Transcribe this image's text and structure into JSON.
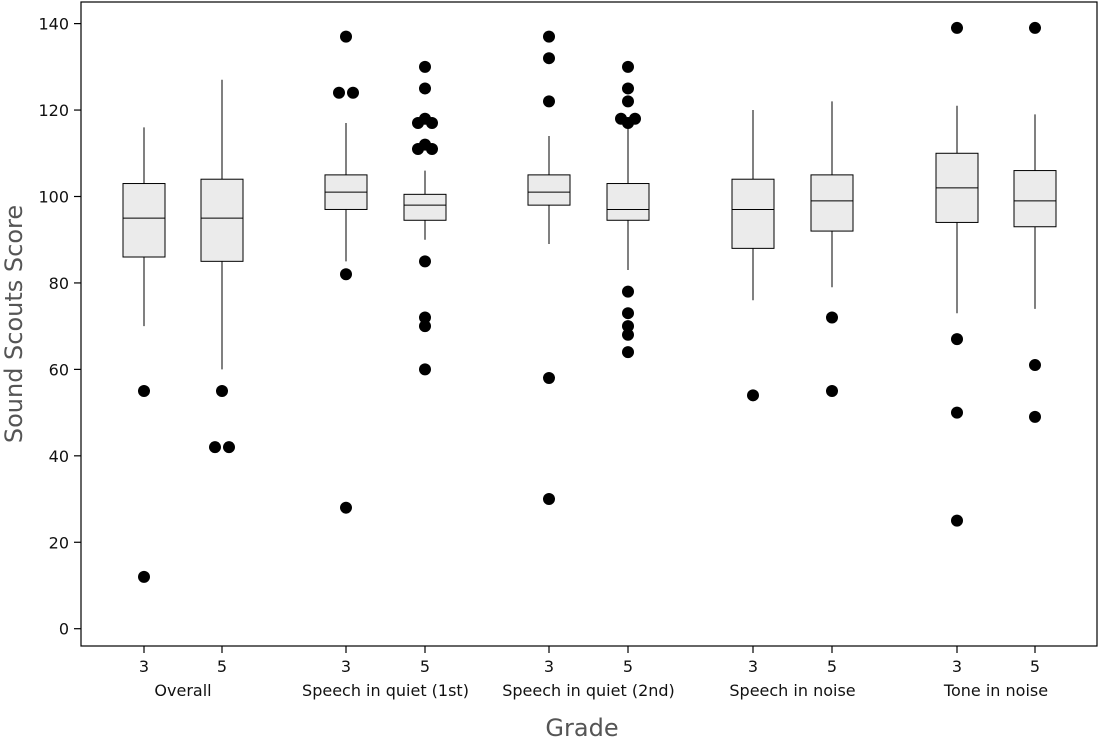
{
  "chart_data": {
    "type": "box",
    "xlabel": "Grade",
    "ylabel": "Sound Scouts Score",
    "ylim": [
      -4,
      145
    ],
    "yticks": [
      0,
      20,
      40,
      60,
      80,
      100,
      120,
      140
    ],
    "grid": false,
    "colors": {
      "box_fill": "#ebebeb",
      "stroke": "#000000",
      "outlier": "#000000",
      "axis_title": "#555555"
    },
    "groups": [
      {
        "label": "Overall",
        "boxes": [
          {
            "grade": "3",
            "whisker_low": 70,
            "q1": 86,
            "median": 95,
            "q3": 103,
            "whisker_high": 116,
            "outliers": [
              55,
              12
            ]
          },
          {
            "grade": "5",
            "whisker_low": 60,
            "q1": 85,
            "median": 95,
            "q3": 104,
            "whisker_high": 127,
            "outliers": [
              55,
              42,
              42
            ]
          }
        ]
      },
      {
        "label": "Speech in quiet (1st)",
        "boxes": [
          {
            "grade": "3",
            "whisker_low": 85,
            "q1": 97,
            "median": 101,
            "q3": 105,
            "whisker_high": 117,
            "outliers": [
              137,
              124,
              124,
              82,
              28
            ]
          },
          {
            "grade": "5",
            "whisker_low": 90,
            "q1": 94.5,
            "median": 98,
            "q3": 100.5,
            "whisker_high": 106,
            "outliers": [
              130,
              125,
              118,
              117,
              117,
              112,
              111,
              111,
              85,
              72,
              70,
              60
            ]
          }
        ]
      },
      {
        "label": "Speech in quiet (2nd)",
        "boxes": [
          {
            "grade": "3",
            "whisker_low": 89,
            "q1": 98,
            "median": 101,
            "q3": 105,
            "whisker_high": 114,
            "outliers": [
              137,
              132,
              122,
              58,
              30
            ]
          },
          {
            "grade": "5",
            "whisker_low": 83,
            "q1": 94.5,
            "median": 97,
            "q3": 103,
            "whisker_high": 116,
            "outliers": [
              130,
              125,
              122,
              118,
              118,
              117,
              78,
              73,
              70,
              68,
              64
            ]
          }
        ]
      },
      {
        "label": "Speech in noise",
        "boxes": [
          {
            "grade": "3",
            "whisker_low": 76,
            "q1": 88,
            "median": 97,
            "q3": 104,
            "whisker_high": 120,
            "outliers": [
              54
            ]
          },
          {
            "grade": "5",
            "whisker_low": 79,
            "q1": 92,
            "median": 99,
            "q3": 105,
            "whisker_high": 122,
            "outliers": [
              72,
              55
            ]
          }
        ]
      },
      {
        "label": "Tone in noise",
        "boxes": [
          {
            "grade": "3",
            "whisker_low": 73,
            "q1": 94,
            "median": 102,
            "q3": 110,
            "whisker_high": 121,
            "outliers": [
              139,
              67,
              50,
              25
            ]
          },
          {
            "grade": "5",
            "whisker_low": 74,
            "q1": 93,
            "median": 99,
            "q3": 106,
            "whisker_high": 119,
            "outliers": [
              139,
              61,
              49
            ]
          }
        ]
      }
    ]
  }
}
